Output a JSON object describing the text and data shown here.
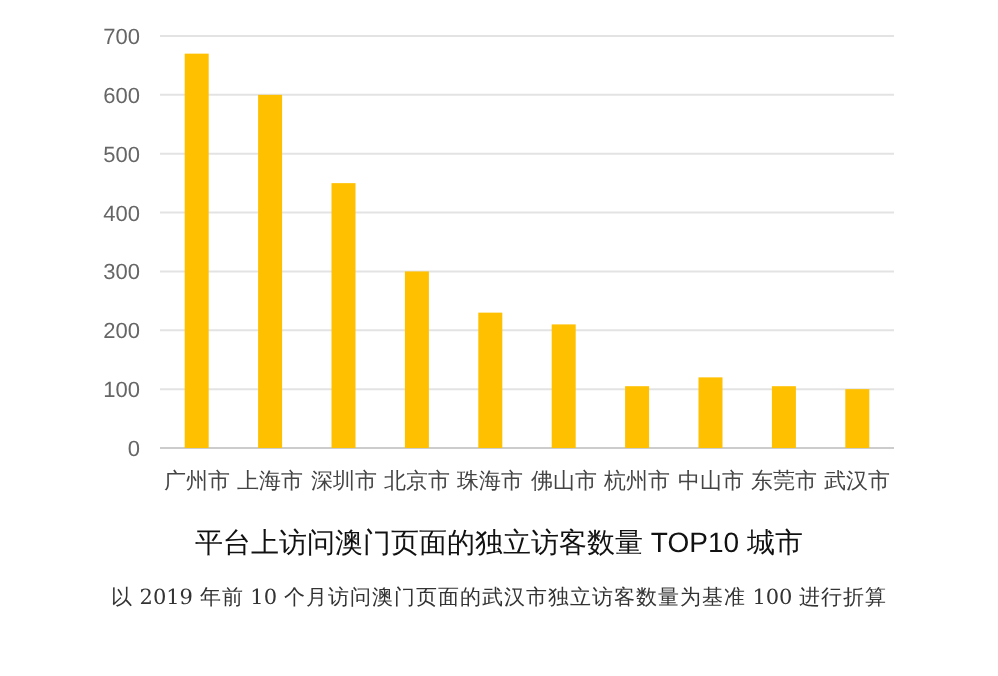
{
  "chart_data": {
    "type": "bar",
    "title": "平台上访问澳门页面的独立访客数量 TOP10 城市",
    "annotations": [
      "以 2019 年前 10 个月访问澳门页面的武汉市独立访客数量为基准 100 进行折算"
    ],
    "categories": [
      "广州市",
      "上海市",
      "深圳市",
      "北京市",
      "珠海市",
      "佛山市",
      "杭州市",
      "中山市",
      "东莞市",
      "武汉市"
    ],
    "values": [
      670,
      600,
      450,
      300,
      230,
      210,
      105,
      120,
      105,
      100
    ],
    "color": "#ffc000",
    "ylim": [
      0,
      700
    ],
    "yticks": [
      0,
      100,
      200,
      300,
      400,
      500,
      600,
      700
    ],
    "grid": "y"
  }
}
